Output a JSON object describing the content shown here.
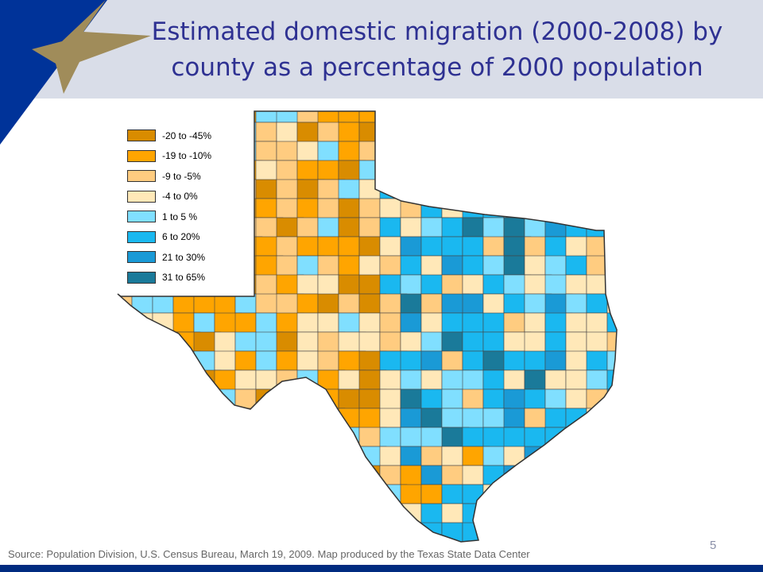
{
  "slide": {
    "title_lines": [
      "Estimated domestic migration (2000-2008) by",
      "county as a percentage of 2000 population"
    ],
    "source": "Source: Population Division, U.S. Census Bureau, March 19, 2009. Map produced by the Texas State Data Center",
    "page_number": "5"
  },
  "theme": {
    "title_color": "#2e3192",
    "header_band": "#d9dde8",
    "corner_blue": "#003399",
    "star_gold": "#a08c5a",
    "footer_bar": "#002b80"
  },
  "legend": {
    "items": [
      {
        "label": "-20 to -45%",
        "color": "#d98c00"
      },
      {
        "label": "-19 to -10%",
        "color": "#ffa500"
      },
      {
        "label": "-9 to -5%",
        "color": "#ffcc80"
      },
      {
        "label": "-4 to 0%",
        "color": "#ffe8b8"
      },
      {
        "label": "1 to 5 %",
        "color": "#80dfff"
      },
      {
        "label": "6 to 20%",
        "color": "#1ab8f0"
      },
      {
        "label": "21 to 30%",
        "color": "#1a9ad6"
      },
      {
        "label": "31 to 65%",
        "color": "#1a7a9a"
      }
    ]
  },
  "map": {
    "region": "Texas",
    "fill_pattern": "counties shaded by class; west/panhandle mostly orange, central/east corridor mostly blue"
  }
}
